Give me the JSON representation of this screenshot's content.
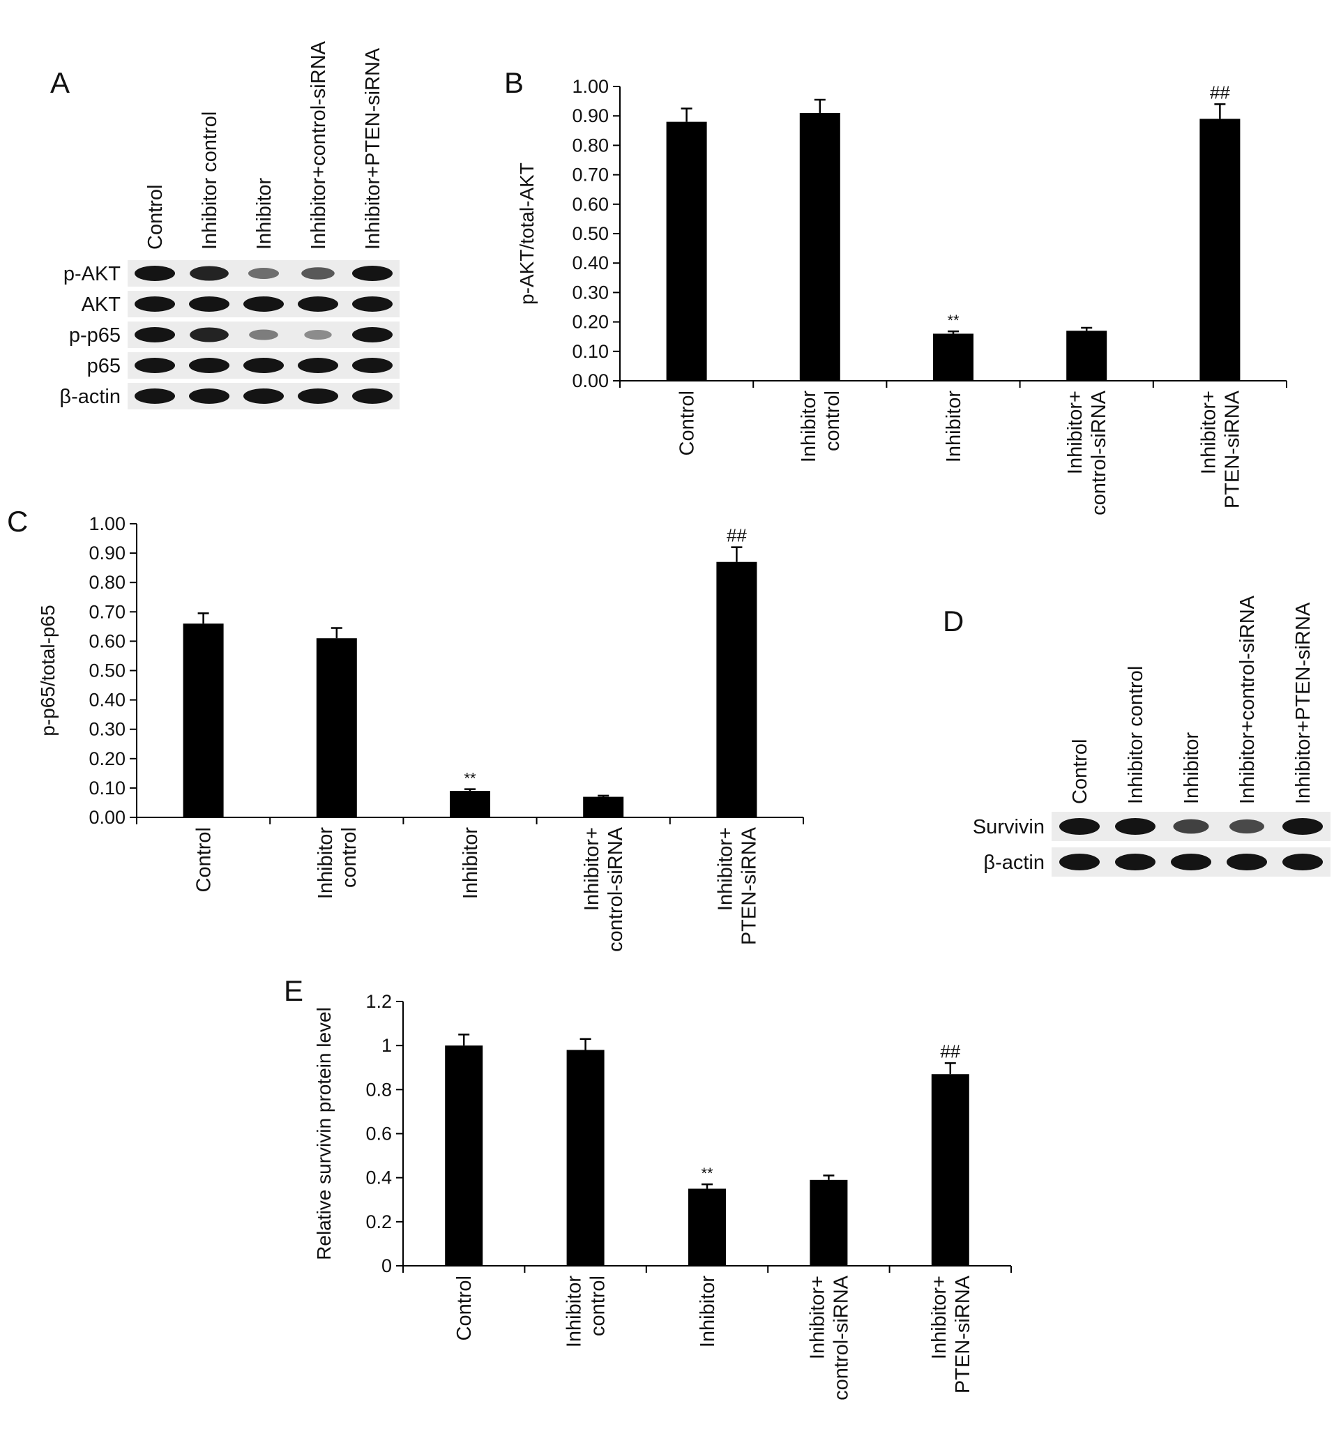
{
  "panels": [
    {
      "id": "A",
      "label": "A"
    },
    {
      "id": "B",
      "label": "B"
    },
    {
      "id": "C",
      "label": "C"
    },
    {
      "id": "D",
      "label": "D"
    },
    {
      "id": "E",
      "label": "E"
    }
  ],
  "blot_A": {
    "lanes": [
      "Control",
      "Inhibitor control",
      "Inhibitor",
      "Inhibitor+control-siRNA",
      "Inhibitor+PTEN-siRNA"
    ],
    "rows": [
      {
        "label": "p-AKT",
        "intensity": [
          1.0,
          0.9,
          0.4,
          0.55,
          1.0
        ]
      },
      {
        "label": "AKT",
        "intensity": [
          1.0,
          1.0,
          1.0,
          1.0,
          1.0
        ]
      },
      {
        "label": "p-p65",
        "intensity": [
          1.0,
          0.9,
          0.3,
          0.2,
          1.0
        ]
      },
      {
        "label": "p65",
        "intensity": [
          1.0,
          1.0,
          1.0,
          1.0,
          1.0
        ]
      },
      {
        "label": "β-actin",
        "intensity": [
          1.0,
          1.0,
          1.0,
          1.0,
          1.0
        ]
      }
    ]
  },
  "blot_D": {
    "lanes": [
      "Control",
      "Inhibitor control",
      "Inhibitor",
      "Inhibitor+control-siRNA",
      "Inhibitor+PTEN-siRNA"
    ],
    "rows": [
      {
        "label": "Survivin",
        "intensity": [
          1.0,
          1.0,
          0.7,
          0.65,
          1.0
        ]
      },
      {
        "label": "β-actin",
        "intensity": [
          1.0,
          1.0,
          1.0,
          1.0,
          1.0
        ]
      }
    ]
  },
  "chart_data": [
    {
      "panel": "B",
      "type": "bar",
      "categories": [
        [
          "Control"
        ],
        [
          "Inhibitor",
          "control"
        ],
        [
          "Inhibitor"
        ],
        [
          "Inhibitor+",
          "control-siRNA"
        ],
        [
          "Inhibitor+",
          "PTEN-siRNA"
        ]
      ],
      "values": [
        0.88,
        0.91,
        0.16,
        0.17,
        0.89
      ],
      "errors": [
        0.045,
        0.045,
        0.008,
        0.01,
        0.05
      ],
      "annotations": [
        "",
        "",
        "**",
        "",
        "##"
      ],
      "ylabel": "p-AKT/total-AKT",
      "ylim": [
        0,
        1.0
      ],
      "yticks": [
        "0.00",
        "0.10",
        "0.20",
        "0.30",
        "0.40",
        "0.50",
        "0.60",
        "0.70",
        "0.80",
        "0.90",
        "1.00"
      ],
      "grid": false,
      "bar_color": "#000000"
    },
    {
      "panel": "C",
      "type": "bar",
      "categories": [
        [
          "Control"
        ],
        [
          "Inhibitor",
          "control"
        ],
        [
          "Inhibitor"
        ],
        [
          "Inhibitor+",
          "control-siRNA"
        ],
        [
          "Inhibitor+",
          "PTEN-siRNA"
        ]
      ],
      "values": [
        0.66,
        0.61,
        0.09,
        0.07,
        0.87
      ],
      "errors": [
        0.035,
        0.035,
        0.006,
        0.004,
        0.05
      ],
      "annotations": [
        "",
        "",
        "**",
        "",
        "##"
      ],
      "ylabel": "p-p65/total-p65",
      "ylim": [
        0,
        1.0
      ],
      "yticks": [
        "0.00",
        "0.10",
        "0.20",
        "0.30",
        "0.40",
        "0.50",
        "0.60",
        "0.70",
        "0.80",
        "0.90",
        "1.00"
      ],
      "grid": false,
      "bar_color": "#000000"
    },
    {
      "panel": "E",
      "type": "bar",
      "categories": [
        [
          "Control"
        ],
        [
          "Inhibitor",
          "control"
        ],
        [
          "Inhibitor"
        ],
        [
          "Inhibitor+",
          "control-siRNA"
        ],
        [
          "Inhibitor+",
          "PTEN-siRNA"
        ]
      ],
      "values": [
        1.0,
        0.98,
        0.35,
        0.39,
        0.87
      ],
      "errors": [
        0.05,
        0.05,
        0.02,
        0.02,
        0.05
      ],
      "annotations": [
        "",
        "",
        "**",
        "",
        "##"
      ],
      "ylabel": "Relative survivin protein level",
      "ylim": [
        0,
        1.2
      ],
      "yticks": [
        "0",
        "0.2",
        "0.4",
        "0.6",
        "0.8",
        "1",
        "1.2"
      ],
      "grid": false,
      "bar_color": "#000000"
    }
  ]
}
